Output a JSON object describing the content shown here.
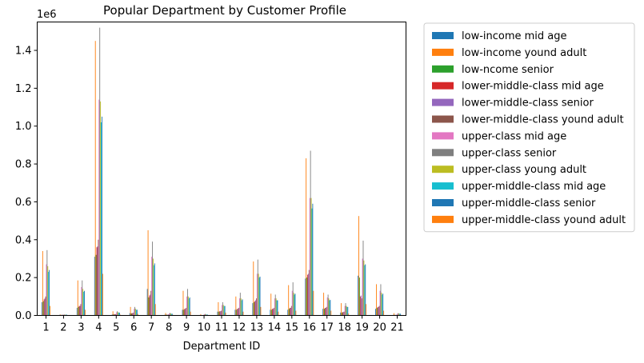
{
  "chart_data": {
    "type": "bar",
    "title": "Popular Department by Customer Profile",
    "xlabel": "Department ID",
    "ylabel": "",
    "y_scale_label": "1e6",
    "ylim": [
      0,
      1.55
    ],
    "y_ticks": [
      "0.0",
      "0.2",
      "0.4",
      "0.6",
      "0.8",
      "1.0",
      "1.2",
      "1.4"
    ],
    "categories": [
      "1",
      "2",
      "3",
      "4",
      "5",
      "6",
      "7",
      "8",
      "9",
      "10",
      "11",
      "12",
      "13",
      "14",
      "15",
      "16",
      "17",
      "18",
      "19",
      "20",
      "21"
    ],
    "legend_position": "outside-right",
    "grid": false,
    "series": [
      {
        "name": "low-income mid age",
        "color": "#1f77b4",
        "values": [
          0.07,
          0.003,
          0.04,
          0.31,
          0.005,
          0.012,
          0.14,
          0.004,
          0.03,
          0.002,
          0.02,
          0.03,
          0.065,
          0.03,
          0.03,
          0.195,
          0.035,
          0.015,
          0.21,
          0.035,
          0.003
        ]
      },
      {
        "name": "low-income yound adult",
        "color": "#ff7f0e",
        "values": [
          0.34,
          0.005,
          0.185,
          1.45,
          0.022,
          0.045,
          0.45,
          0.013,
          0.13,
          0.007,
          0.07,
          0.1,
          0.285,
          0.115,
          0.16,
          0.83,
          0.12,
          0.065,
          0.525,
          0.165,
          0.012
        ]
      },
      {
        "name": "low-ncome senior",
        "color": "#2ca02c",
        "values": [
          0.075,
          0.003,
          0.045,
          0.32,
          0.005,
          0.01,
          0.095,
          0.004,
          0.03,
          0.002,
          0.02,
          0.03,
          0.07,
          0.03,
          0.035,
          0.2,
          0.035,
          0.015,
          0.2,
          0.04,
          0.003
        ]
      },
      {
        "name": "lower-middle-class mid age",
        "color": "#d62728",
        "values": [
          0.085,
          0.003,
          0.05,
          0.36,
          0.006,
          0.012,
          0.105,
          0.004,
          0.035,
          0.002,
          0.022,
          0.035,
          0.075,
          0.035,
          0.04,
          0.215,
          0.04,
          0.018,
          0.1,
          0.045,
          0.003
        ]
      },
      {
        "name": "lower-middle-class senior",
        "color": "#9467bd",
        "values": [
          0.09,
          0.003,
          0.05,
          0.365,
          0.006,
          0.012,
          0.11,
          0.004,
          0.035,
          0.002,
          0.022,
          0.035,
          0.08,
          0.035,
          0.04,
          0.22,
          0.04,
          0.018,
          0.105,
          0.045,
          0.003
        ]
      },
      {
        "name": "lower-middle-class yound adult",
        "color": "#8c564b",
        "values": [
          0.1,
          0.004,
          0.06,
          0.4,
          0.007,
          0.015,
          0.13,
          0.005,
          0.04,
          0.003,
          0.025,
          0.04,
          0.09,
          0.04,
          0.05,
          0.24,
          0.045,
          0.02,
          0.09,
          0.05,
          0.004
        ]
      },
      {
        "name": "upper-class mid age",
        "color": "#e377c2",
        "values": [
          0.27,
          0.004,
          0.15,
          1.14,
          0.017,
          0.035,
          0.31,
          0.01,
          0.1,
          0.006,
          0.055,
          0.09,
          0.22,
          0.09,
          0.13,
          0.62,
          0.095,
          0.05,
          0.3,
          0.13,
          0.01
        ]
      },
      {
        "name": "upper-class senior",
        "color": "#7f7f7f",
        "values": [
          0.345,
          0.005,
          0.185,
          1.52,
          0.022,
          0.045,
          0.39,
          0.013,
          0.14,
          0.008,
          0.07,
          0.12,
          0.295,
          0.11,
          0.175,
          0.87,
          0.11,
          0.065,
          0.395,
          0.165,
          0.012
        ]
      },
      {
        "name": "upper-class young adult",
        "color": "#bcbd22",
        "values": [
          0.26,
          0.004,
          0.14,
          1.13,
          0.017,
          0.035,
          0.3,
          0.01,
          0.1,
          0.005,
          0.055,
          0.09,
          0.22,
          0.09,
          0.12,
          0.62,
          0.09,
          0.05,
          0.29,
          0.12,
          0.01
        ]
      },
      {
        "name": "upper-middle-class mid age",
        "color": "#17becf",
        "values": [
          0.23,
          0.004,
          0.125,
          1.02,
          0.015,
          0.03,
          0.265,
          0.009,
          0.09,
          0.005,
          0.05,
          0.08,
          0.2,
          0.08,
          0.11,
          0.565,
          0.08,
          0.045,
          0.265,
          0.11,
          0.009
        ]
      },
      {
        "name": "upper-middle-class senior",
        "color": "#1f77b4",
        "values": [
          0.24,
          0.004,
          0.13,
          1.05,
          0.015,
          0.03,
          0.275,
          0.009,
          0.095,
          0.005,
          0.05,
          0.085,
          0.205,
          0.08,
          0.115,
          0.59,
          0.082,
          0.045,
          0.27,
          0.115,
          0.009
        ]
      },
      {
        "name": "upper-middle-class yound adult",
        "color": "#ff7f0e",
        "values": [
          0.05,
          0.002,
          0.03,
          0.22,
          0.004,
          0.008,
          0.06,
          0.003,
          0.02,
          0.002,
          0.015,
          0.02,
          0.045,
          0.02,
          0.025,
          0.13,
          0.025,
          0.01,
          0.06,
          0.025,
          0.002
        ]
      }
    ]
  }
}
